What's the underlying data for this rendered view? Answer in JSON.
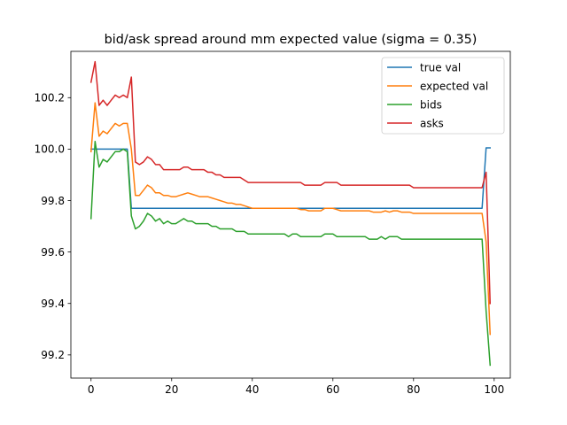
{
  "chart_data": {
    "type": "line",
    "title": "bid/ask spread around mm expected value (sigma = 0.35)",
    "xlabel": "",
    "ylabel": "",
    "xlim": [
      -5,
      104
    ],
    "ylim": [
      99.11,
      100.38
    ],
    "xticks": [
      0,
      20,
      40,
      60,
      80,
      100
    ],
    "yticks": [
      99.2,
      99.4,
      99.6,
      99.8,
      100.0,
      100.2
    ],
    "ytick_labels": [
      "99.2",
      "99.4",
      "99.6",
      "99.8",
      "100.0",
      "100.2"
    ],
    "grid": false,
    "legend_position": "top-right",
    "x": [
      0,
      1,
      2,
      3,
      4,
      5,
      6,
      7,
      8,
      9,
      10,
      11,
      12,
      13,
      14,
      15,
      16,
      17,
      18,
      19,
      20,
      21,
      22,
      23,
      24,
      25,
      26,
      27,
      28,
      29,
      30,
      31,
      32,
      33,
      34,
      35,
      36,
      37,
      38,
      39,
      40,
      41,
      42,
      43,
      44,
      45,
      46,
      47,
      48,
      49,
      50,
      51,
      52,
      53,
      54,
      55,
      56,
      57,
      58,
      59,
      60,
      61,
      62,
      63,
      64,
      65,
      66,
      67,
      68,
      69,
      70,
      71,
      72,
      73,
      74,
      75,
      76,
      77,
      78,
      79,
      80,
      81,
      82,
      83,
      84,
      85,
      86,
      87,
      88,
      89,
      90,
      91,
      92,
      93,
      94,
      95,
      96,
      97,
      98,
      99
    ],
    "series": [
      {
        "name": "true val",
        "color": "#1f77b4",
        "values": [
          100.0,
          100.0,
          100.0,
          100.0,
          100.0,
          100.0,
          100.0,
          100.0,
          100.0,
          100.0,
          99.77,
          99.77,
          99.77,
          99.77,
          99.77,
          99.77,
          99.77,
          99.77,
          99.77,
          99.77,
          99.77,
          99.77,
          99.77,
          99.77,
          99.77,
          99.77,
          99.77,
          99.77,
          99.77,
          99.77,
          99.77,
          99.77,
          99.77,
          99.77,
          99.77,
          99.77,
          99.77,
          99.77,
          99.77,
          99.77,
          99.77,
          99.77,
          99.77,
          99.77,
          99.77,
          99.77,
          99.77,
          99.77,
          99.77,
          99.77,
          99.77,
          99.77,
          99.77,
          99.77,
          99.77,
          99.77,
          99.77,
          99.77,
          99.77,
          99.77,
          99.77,
          99.77,
          99.77,
          99.77,
          99.77,
          99.77,
          99.77,
          99.77,
          99.77,
          99.77,
          99.77,
          99.77,
          99.77,
          99.77,
          99.77,
          99.77,
          99.77,
          99.77,
          99.77,
          99.77,
          99.77,
          99.77,
          99.77,
          99.77,
          99.77,
          99.77,
          99.77,
          99.77,
          99.77,
          99.77,
          99.77,
          99.77,
          99.77,
          99.77,
          99.77,
          99.77,
          99.77,
          99.77,
          100.005,
          100.005
        ]
      },
      {
        "name": "expected val",
        "color": "#ff7f0e",
        "values": [
          99.99,
          100.18,
          100.05,
          100.07,
          100.06,
          100.08,
          100.1,
          100.09,
          100.1,
          100.1,
          100.0,
          99.82,
          99.82,
          99.84,
          99.86,
          99.85,
          99.83,
          99.83,
          99.82,
          99.82,
          99.815,
          99.815,
          99.82,
          99.825,
          99.83,
          99.825,
          99.82,
          99.815,
          99.815,
          99.815,
          99.81,
          99.805,
          99.8,
          99.795,
          99.79,
          99.79,
          99.785,
          99.785,
          99.78,
          99.775,
          99.77,
          99.77,
          99.77,
          99.77,
          99.77,
          99.77,
          99.77,
          99.77,
          99.77,
          99.77,
          99.77,
          99.77,
          99.765,
          99.765,
          99.76,
          99.76,
          99.76,
          99.76,
          99.77,
          99.77,
          99.77,
          99.765,
          99.76,
          99.76,
          99.76,
          99.76,
          99.76,
          99.76,
          99.76,
          99.76,
          99.755,
          99.755,
          99.755,
          99.76,
          99.755,
          99.76,
          99.76,
          99.755,
          99.755,
          99.755,
          99.75,
          99.75,
          99.75,
          99.75,
          99.75,
          99.75,
          99.75,
          99.75,
          99.75,
          99.75,
          99.75,
          99.75,
          99.75,
          99.75,
          99.75,
          99.75,
          99.75,
          99.75,
          99.64,
          99.28
        ]
      },
      {
        "name": "bids",
        "color": "#2ca02c",
        "values": [
          99.73,
          100.03,
          99.93,
          99.96,
          99.95,
          99.97,
          99.99,
          99.99,
          100.0,
          99.99,
          99.74,
          99.69,
          99.7,
          99.72,
          99.75,
          99.74,
          99.72,
          99.73,
          99.71,
          99.72,
          99.71,
          99.71,
          99.72,
          99.73,
          99.72,
          99.72,
          99.71,
          99.71,
          99.71,
          99.71,
          99.7,
          99.7,
          99.69,
          99.69,
          99.69,
          99.69,
          99.68,
          99.68,
          99.68,
          99.67,
          99.67,
          99.67,
          99.67,
          99.67,
          99.67,
          99.67,
          99.67,
          99.67,
          99.67,
          99.66,
          99.67,
          99.67,
          99.66,
          99.66,
          99.66,
          99.66,
          99.66,
          99.66,
          99.67,
          99.67,
          99.67,
          99.66,
          99.66,
          99.66,
          99.66,
          99.66,
          99.66,
          99.66,
          99.66,
          99.65,
          99.65,
          99.65,
          99.66,
          99.65,
          99.66,
          99.66,
          99.66,
          99.65,
          99.65,
          99.65,
          99.65,
          99.65,
          99.65,
          99.65,
          99.65,
          99.65,
          99.65,
          99.65,
          99.65,
          99.65,
          99.65,
          99.65,
          99.65,
          99.65,
          99.65,
          99.65,
          99.65,
          99.65,
          99.37,
          99.16
        ]
      },
      {
        "name": "asks",
        "color": "#d62728",
        "values": [
          100.26,
          100.34,
          100.17,
          100.19,
          100.17,
          100.19,
          100.21,
          100.2,
          100.21,
          100.2,
          100.28,
          99.95,
          99.94,
          99.95,
          99.97,
          99.96,
          99.94,
          99.94,
          99.92,
          99.92,
          99.92,
          99.92,
          99.92,
          99.93,
          99.93,
          99.92,
          99.92,
          99.92,
          99.92,
          99.91,
          99.91,
          99.9,
          99.9,
          99.89,
          99.89,
          99.89,
          99.89,
          99.89,
          99.88,
          99.87,
          99.87,
          99.87,
          99.87,
          99.87,
          99.87,
          99.87,
          99.87,
          99.87,
          99.87,
          99.87,
          99.87,
          99.87,
          99.87,
          99.86,
          99.86,
          99.86,
          99.86,
          99.86,
          99.87,
          99.87,
          99.87,
          99.87,
          99.86,
          99.86,
          99.86,
          99.86,
          99.86,
          99.86,
          99.86,
          99.86,
          99.86,
          99.86,
          99.86,
          99.86,
          99.86,
          99.86,
          99.86,
          99.86,
          99.86,
          99.86,
          99.85,
          99.85,
          99.85,
          99.85,
          99.85,
          99.85,
          99.85,
          99.85,
          99.85,
          99.85,
          99.85,
          99.85,
          99.85,
          99.85,
          99.85,
          99.85,
          99.85,
          99.85,
          99.91,
          99.4
        ]
      }
    ]
  }
}
